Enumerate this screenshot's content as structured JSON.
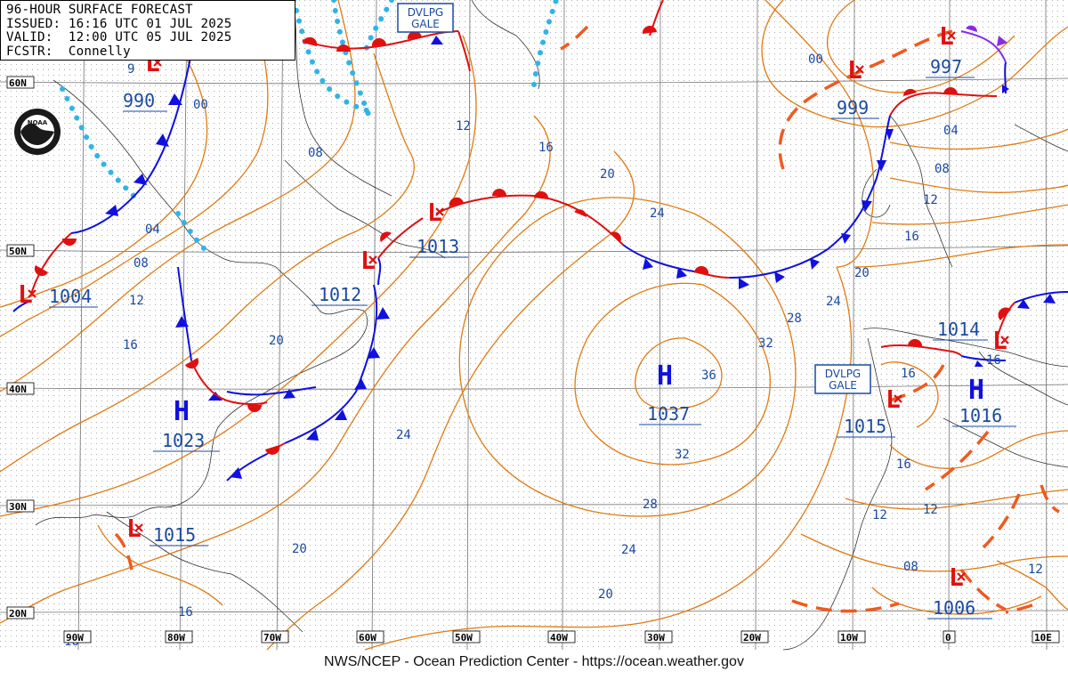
{
  "header": {
    "title": "96-HOUR SURFACE FORECAST",
    "issued": "ISSUED: 16:16 UTC 01 JUL 2025",
    "valid": "VALID:  12:00 UTC 05 JUL 2025",
    "forecaster": "FCSTR:  Connelly"
  },
  "footer": "NWS/NCEP - Ocean Prediction Center - https://ocean.weather.gov",
  "colors": {
    "isobar": "#e07a10",
    "cold_front": "#1010e0",
    "warm_front": "#e01010",
    "trough": "#f05a1e",
    "ice_edge": "#30b4e8",
    "occluded": "#8a2be2",
    "label": "#1a4aa0",
    "grid": "#8a8a8a"
  },
  "latitude_labels": [
    "60N",
    "50N",
    "40N",
    "30N",
    "20N"
  ],
  "longitude_labels": [
    "90W",
    "80W",
    "70W",
    "60W",
    "50W",
    "40W",
    "30W",
    "20W",
    "10W",
    "0",
    "10E"
  ],
  "lows": [
    {
      "symbol": "L",
      "pressure": "990"
    },
    {
      "symbol": "L",
      "pressure": "1004"
    },
    {
      "symbol": "L",
      "pressure": "1012"
    },
    {
      "symbol": "L",
      "pressure": "1013"
    },
    {
      "symbol": "L",
      "pressure": "999"
    },
    {
      "symbol": "L",
      "pressure": "997"
    },
    {
      "symbol": "L",
      "pressure": "1014"
    },
    {
      "symbol": "L",
      "pressure": "1015"
    },
    {
      "symbol": "L",
      "pressure": "1015"
    },
    {
      "symbol": "L",
      "pressure": "1006"
    }
  ],
  "highs": [
    {
      "symbol": "H",
      "pressure": "1037"
    },
    {
      "symbol": "H",
      "pressure": "1023"
    },
    {
      "symbol": "H",
      "pressure": "1016"
    }
  ],
  "warnings": [
    "DVLPG GALE",
    "DVLPG GALE"
  ],
  "isobar_labels": [
    "00",
    "08",
    "04",
    "08",
    "12",
    "16",
    "12",
    "16",
    "20",
    "24",
    "28",
    "32",
    "36",
    "32",
    "28",
    "24",
    "20",
    "24",
    "20",
    "16",
    "16",
    "20",
    "24",
    "16",
    "12",
    "08",
    "04",
    "00",
    "16",
    "16",
    "12",
    "12",
    "08",
    "12",
    "16",
    "20",
    "9"
  ]
}
